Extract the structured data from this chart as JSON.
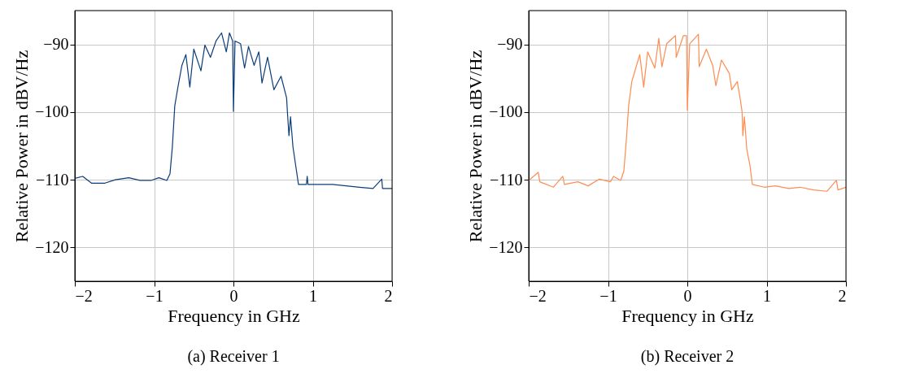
{
  "chart_data": [
    {
      "type": "line",
      "title": "(a) Receiver 1",
      "xlabel": "Frequency in GHz",
      "ylabel": "Relative Power in dBV/Hz",
      "xlim": [
        -2,
        2
      ],
      "ylim": [
        -125,
        -85
      ],
      "xticks": [
        -2,
        -1,
        0,
        1,
        2
      ],
      "yticks": [
        -120,
        -110,
        -100,
        -90
      ],
      "grid": true,
      "marker": "none",
      "line_style": "solid",
      "series": [
        {
          "color": "#0b3d7a",
          "x": [
            -2,
            -1.9,
            -1.79,
            -1.62,
            -1.49,
            -1.32,
            -1.18,
            -1.04,
            -0.94,
            -0.84,
            -0.8,
            -0.77,
            -0.74,
            -0.7,
            -0.65,
            -0.6,
            -0.55,
            -0.5,
            -0.41,
            -0.36,
            -0.29,
            -0.22,
            -0.15,
            -0.09,
            -0.05,
            -0.01,
            0.0,
            0.02,
            0.09,
            0.14,
            0.19,
            0.26,
            0.32,
            0.36,
            0.43,
            0.51,
            0.6,
            0.67,
            0.68,
            0.7,
            0.72,
            0.75,
            0.79,
            0.82,
            0.92,
            0.93,
            0.94,
            1.08,
            1.25,
            1.42,
            1.59,
            1.76,
            1.87,
            1.88,
            2.0
          ],
          "values": [
            -109.8,
            -109.5,
            -110.5,
            -110.5,
            -110.0,
            -109.7,
            -110.1,
            -110.1,
            -109.7,
            -110.1,
            -109.1,
            -105.1,
            -99.1,
            -96.3,
            -93.1,
            -91.5,
            -96.3,
            -90.7,
            -93.9,
            -90.1,
            -91.9,
            -89.5,
            -88.3,
            -91.1,
            -88.3,
            -89.5,
            -99.9,
            -89.5,
            -89.9,
            -93.5,
            -90.3,
            -93.1,
            -91.1,
            -95.7,
            -91.9,
            -96.7,
            -94.7,
            -97.9,
            -99.9,
            -103.5,
            -100.7,
            -105.1,
            -108.3,
            -110.7,
            -110.7,
            -109.5,
            -110.7,
            -110.7,
            -110.7,
            -110.9,
            -111.1,
            -111.3,
            -109.9,
            -111.3,
            -111.3
          ]
        }
      ]
    },
    {
      "type": "line",
      "title": "(b) Receiver 2",
      "xlabel": "Frequency in GHz",
      "ylabel": "Relative Power in dBV/Hz",
      "xlim": [
        -2,
        2
      ],
      "ylim": [
        -125,
        -85
      ],
      "xticks": [
        -2,
        -1,
        0,
        1,
        2
      ],
      "yticks": [
        -120,
        -110,
        -100,
        -90
      ],
      "grid": true,
      "marker": "none",
      "line_style": "solid",
      "series": [
        {
          "color": "#ff8c50",
          "x": [
            -2,
            -1.88,
            -1.86,
            -1.69,
            -1.57,
            -1.55,
            -1.38,
            -1.25,
            -1.11,
            -0.97,
            -0.93,
            -0.84,
            -0.8,
            -0.77,
            -0.74,
            -0.7,
            -0.65,
            -0.6,
            -0.55,
            -0.5,
            -0.41,
            -0.36,
            -0.32,
            -0.26,
            -0.15,
            -0.14,
            -0.05,
            -0.01,
            0.0,
            0.03,
            0.14,
            0.15,
            0.24,
            0.32,
            0.36,
            0.43,
            0.53,
            0.56,
            0.63,
            0.67,
            0.69,
            0.7,
            0.72,
            0.75,
            0.79,
            0.82,
            0.97,
            1.11,
            1.28,
            1.42,
            1.59,
            1.76,
            1.88,
            1.9,
            2.0
          ],
          "values": [
            -110.1,
            -108.9,
            -110.3,
            -111.1,
            -109.5,
            -110.7,
            -110.3,
            -110.9,
            -109.9,
            -110.3,
            -109.5,
            -110.1,
            -108.7,
            -104.3,
            -99.1,
            -95.5,
            -93.5,
            -91.5,
            -96.3,
            -91.1,
            -93.5,
            -89.1,
            -93.3,
            -89.9,
            -88.7,
            -91.9,
            -88.7,
            -88.7,
            -99.7,
            -89.9,
            -88.5,
            -93.3,
            -90.7,
            -93.1,
            -96.1,
            -92.3,
            -94.3,
            -96.7,
            -95.5,
            -98.3,
            -99.9,
            -103.5,
            -100.7,
            -105.5,
            -107.9,
            -110.7,
            -111.1,
            -110.9,
            -111.3,
            -111.1,
            -111.5,
            -111.7,
            -110.1,
            -111.5,
            -111.1
          ]
        }
      ]
    }
  ]
}
